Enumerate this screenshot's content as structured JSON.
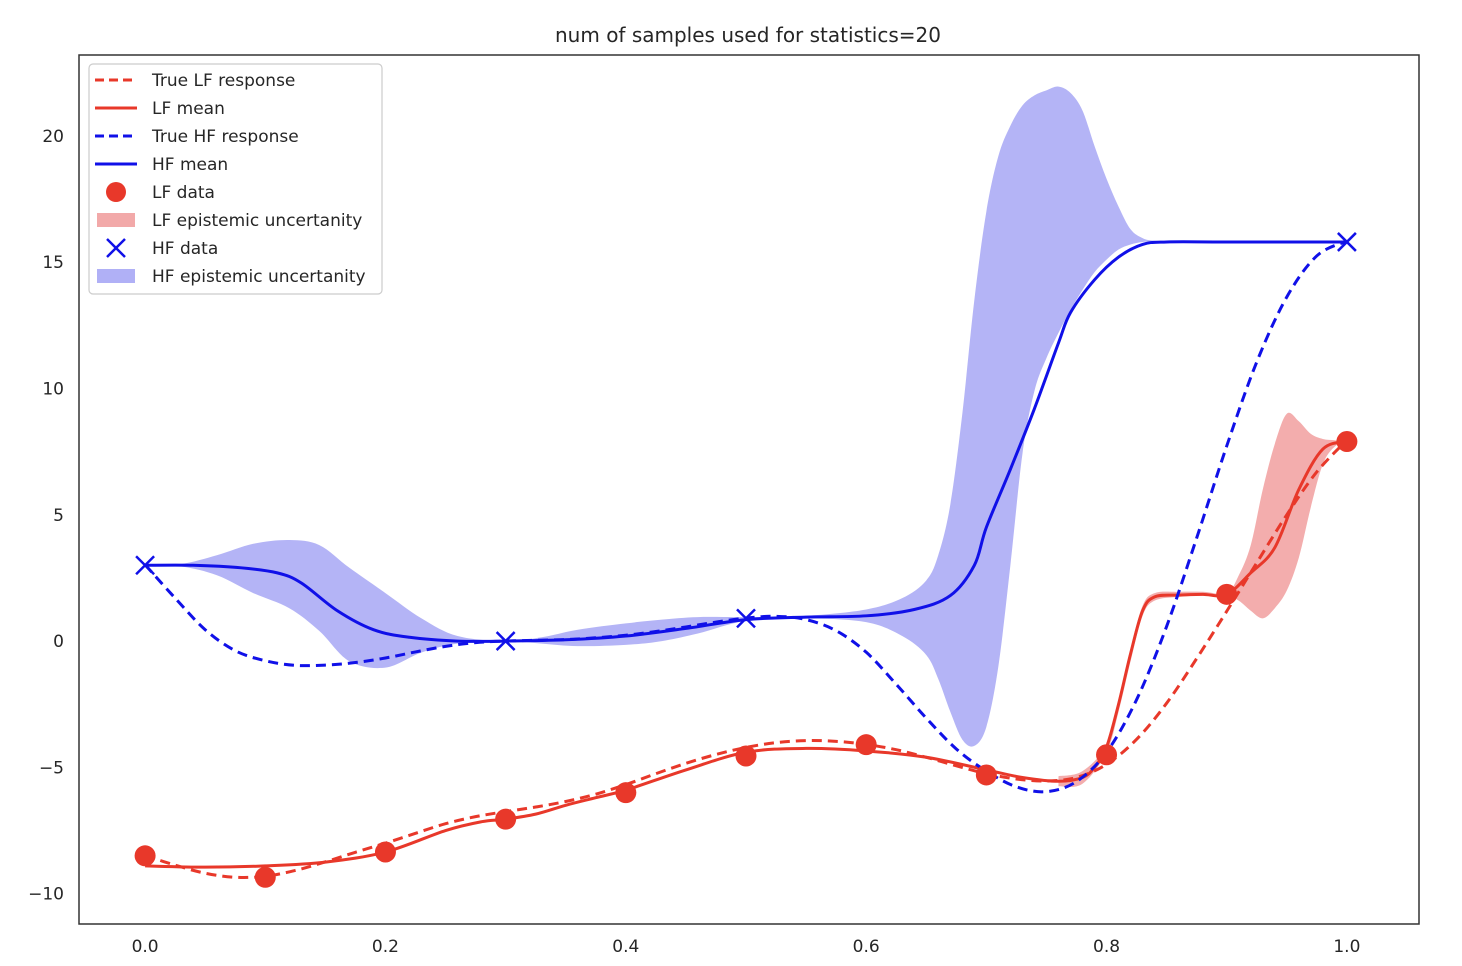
{
  "chart_data": {
    "type": "line",
    "title": "num of samples used for statistics=20",
    "xlabel": "",
    "ylabel": "",
    "xlim": [
      -0.055,
      1.06
    ],
    "ylim": [
      -11.2,
      23.2
    ],
    "xticks": [
      0.0,
      0.2,
      0.4,
      0.6,
      0.8,
      1.0
    ],
    "xtick_labels": [
      "0.0",
      "0.2",
      "0.4",
      "0.6",
      "0.8",
      "1.0"
    ],
    "yticks": [
      -10,
      -5,
      0,
      5,
      10,
      15,
      20
    ],
    "ytick_labels": [
      "−10",
      "−5",
      "0",
      "5",
      "10",
      "15",
      "20"
    ],
    "grid": false,
    "legend_position": "upper-left",
    "colors": {
      "lf": "#e8382a",
      "hf": "#1010e8",
      "lf_band": "#f2a9a9",
      "hf_band": "#b0b0f6"
    },
    "series": [
      {
        "name": "True LF response",
        "kind": "line",
        "style": "dashed",
        "color": "#e8382a",
        "x": [
          0,
          0.025,
          0.05,
          0.075,
          0.1,
          0.125,
          0.15,
          0.175,
          0.2,
          0.225,
          0.25,
          0.275,
          0.3,
          0.325,
          0.35,
          0.375,
          0.4,
          0.425,
          0.45,
          0.475,
          0.5,
          0.525,
          0.55,
          0.575,
          0.6,
          0.625,
          0.65,
          0.675,
          0.7,
          0.725,
          0.75,
          0.775,
          0.8,
          0.825,
          0.85,
          0.875,
          0.9,
          0.925,
          0.95,
          0.975,
          1.0
        ],
        "y": [
          -8.49,
          -8.87,
          -9.19,
          -9.35,
          -9.31,
          -9.08,
          -8.74,
          -8.36,
          -8.0,
          -7.61,
          -7.23,
          -6.95,
          -6.75,
          -6.57,
          -6.35,
          -6.06,
          -5.68,
          -5.25,
          -4.84,
          -4.49,
          -4.21,
          -4.02,
          -3.94,
          -3.97,
          -4.09,
          -4.3,
          -4.6,
          -4.94,
          -5.25,
          -5.46,
          -5.54,
          -5.4,
          -4.88,
          -3.89,
          -2.46,
          -0.69,
          1.18,
          3.1,
          5.0,
          6.7,
          7.95
        ]
      },
      {
        "name": "LF mean",
        "kind": "line",
        "style": "solid",
        "color": "#e8382a",
        "x": [
          0,
          0.05,
          0.1,
          0.15,
          0.2,
          0.25,
          0.28,
          0.3,
          0.325,
          0.35,
          0.375,
          0.4,
          0.45,
          0.5,
          0.55,
          0.6,
          0.65,
          0.7,
          0.73,
          0.76,
          0.78,
          0.79,
          0.8,
          0.81,
          0.82,
          0.83,
          0.84,
          0.86,
          0.88,
          0.9,
          0.92,
          0.94,
          0.96,
          0.98,
          1.0
        ],
        "y": [
          -8.9,
          -8.95,
          -8.9,
          -8.75,
          -8.35,
          -7.5,
          -7.15,
          -7.05,
          -6.85,
          -6.5,
          -6.2,
          -5.9,
          -5.1,
          -4.4,
          -4.25,
          -4.35,
          -4.6,
          -5.1,
          -5.4,
          -5.55,
          -5.4,
          -5.0,
          -4.2,
          -2.5,
          -0.5,
          1.2,
          1.75,
          1.82,
          1.85,
          1.85,
          2.7,
          3.7,
          6.0,
          7.6,
          7.9
        ]
      },
      {
        "name": "True HF response",
        "kind": "line",
        "style": "dashed",
        "color": "#1010e8",
        "x": [
          0,
          0.025,
          0.05,
          0.075,
          0.1,
          0.125,
          0.15,
          0.175,
          0.2,
          0.225,
          0.25,
          0.275,
          0.3,
          0.325,
          0.35,
          0.375,
          0.4,
          0.425,
          0.45,
          0.475,
          0.5,
          0.525,
          0.55,
          0.575,
          0.6,
          0.625,
          0.65,
          0.675,
          0.7,
          0.725,
          0.75,
          0.775,
          0.8,
          0.825,
          0.85,
          0.875,
          0.9,
          0.925,
          0.95,
          0.975,
          1.0
        ],
        "y": [
          3.02,
          1.7,
          0.45,
          -0.38,
          -0.78,
          -0.96,
          -0.95,
          -0.85,
          -0.67,
          -0.43,
          -0.21,
          -0.06,
          0.0,
          0.03,
          0.06,
          0.13,
          0.23,
          0.38,
          0.56,
          0.75,
          0.91,
          0.98,
          0.85,
          0.41,
          -0.44,
          -1.71,
          -3.05,
          -4.27,
          -5.15,
          -5.77,
          -5.96,
          -5.56,
          -4.4,
          -2.32,
          0.58,
          4.08,
          7.72,
          11.05,
          13.62,
          15.25,
          15.83
        ]
      },
      {
        "name": "HF mean",
        "kind": "line",
        "style": "solid",
        "color": "#1010e8",
        "x": [
          0,
          0.04,
          0.08,
          0.11,
          0.13,
          0.16,
          0.19,
          0.22,
          0.26,
          0.3,
          0.35,
          0.4,
          0.45,
          0.5,
          0.55,
          0.6,
          0.64,
          0.67,
          0.69,
          0.7,
          0.72,
          0.74,
          0.76,
          0.77,
          0.79,
          0.81,
          0.83,
          0.85,
          0.9,
          1.0
        ],
        "y": [
          3.0,
          3.0,
          2.9,
          2.7,
          2.3,
          1.2,
          0.45,
          0.15,
          0.0,
          0.0,
          0.05,
          0.2,
          0.5,
          0.85,
          0.95,
          1.0,
          1.25,
          1.8,
          3.0,
          4.5,
          6.8,
          9.2,
          11.8,
          13.0,
          14.3,
          15.2,
          15.7,
          15.8,
          15.8,
          15.8
        ]
      },
      {
        "name": "LF data",
        "kind": "scatter",
        "marker": "circle",
        "color": "#e8382a",
        "x": [
          0.0,
          0.1,
          0.2,
          0.3,
          0.4,
          0.5,
          0.6,
          0.7,
          0.8,
          0.9,
          1.0
        ],
        "y": [
          -8.5,
          -9.35,
          -8.35,
          -7.05,
          -6.0,
          -4.55,
          -4.1,
          -5.3,
          -4.5,
          1.85,
          7.9
        ]
      },
      {
        "name": "LF epistemic uncertanity",
        "kind": "band",
        "color": "#f2a9a9",
        "x": [
          0.76,
          0.78,
          0.8,
          0.81,
          0.82,
          0.83,
          0.84,
          0.86,
          0.88,
          0.9,
          0.91,
          0.92,
          0.93,
          0.94,
          0.95,
          0.96,
          0.97,
          0.98,
          0.99,
          1.0
        ],
        "upper": [
          -5.35,
          -5.15,
          -4.1,
          -2.3,
          -0.3,
          1.4,
          1.9,
          1.95,
          1.95,
          1.9,
          2.6,
          3.8,
          6.0,
          7.8,
          9.0,
          8.7,
          8.2,
          8.0,
          7.95,
          7.9
        ],
        "lower": [
          -5.75,
          -5.65,
          -4.4,
          -2.8,
          -0.8,
          1.0,
          1.6,
          1.75,
          1.8,
          1.8,
          1.6,
          1.2,
          0.9,
          1.3,
          2.0,
          3.3,
          5.3,
          7.0,
          7.7,
          7.9
        ]
      },
      {
        "name": "HF data",
        "kind": "scatter",
        "marker": "x",
        "color": "#1010e8",
        "x": [
          0.0,
          0.3,
          0.5,
          1.0
        ],
        "y": [
          3.0,
          0.0,
          0.9,
          15.8
        ]
      },
      {
        "name": "HF epistemic uncertanity",
        "kind": "band",
        "color": "#b0b0f6",
        "x": [
          0,
          0.03,
          0.06,
          0.09,
          0.12,
          0.145,
          0.17,
          0.2,
          0.23,
          0.26,
          0.3,
          0.33,
          0.36,
          0.4,
          0.43,
          0.46,
          0.5,
          0.55,
          0.6,
          0.63,
          0.65,
          0.66,
          0.67,
          0.68,
          0.69,
          0.7,
          0.71,
          0.72,
          0.73,
          0.74,
          0.75,
          0.76,
          0.77,
          0.78,
          0.79,
          0.8,
          0.81,
          0.82,
          0.83,
          0.84,
          0.86,
          0.88,
          0.9,
          1.0
        ],
        "upper": [
          3.0,
          3.05,
          3.4,
          3.85,
          4.0,
          3.8,
          2.9,
          1.9,
          0.9,
          0.2,
          0.0,
          0.15,
          0.45,
          0.7,
          0.85,
          0.95,
          0.95,
          1.0,
          1.25,
          1.7,
          2.4,
          3.4,
          5.4,
          9.0,
          13.5,
          17.0,
          19.2,
          20.4,
          21.2,
          21.6,
          21.8,
          21.95,
          21.7,
          21.0,
          19.6,
          18.3,
          17.2,
          16.3,
          15.95,
          15.85,
          15.8,
          15.8,
          15.8,
          15.8
        ],
        "lower": [
          3.0,
          2.95,
          2.6,
          1.9,
          1.3,
          0.4,
          -0.8,
          -1.05,
          -0.45,
          -0.1,
          0.0,
          -0.1,
          -0.2,
          -0.15,
          0.0,
          0.3,
          0.8,
          0.9,
          0.75,
          0.2,
          -0.55,
          -1.5,
          -2.8,
          -3.9,
          -4.15,
          -3.4,
          -1.0,
          3.0,
          7.4,
          9.9,
          11.2,
          12.2,
          13.1,
          13.9,
          14.6,
          15.1,
          15.5,
          15.7,
          15.8,
          15.8,
          15.8,
          15.8,
          15.8,
          15.8
        ]
      }
    ]
  }
}
